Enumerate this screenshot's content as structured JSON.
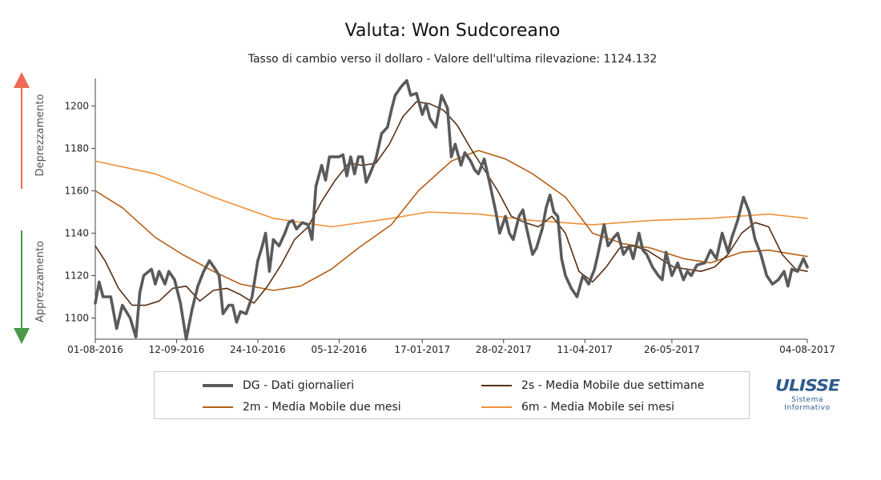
{
  "title": "Valuta: Won Sudcoreano",
  "subtitle": "Tasso di cambio verso il dollaro - Valore dell'ultima rilevazione: 1124.132",
  "side_labels": {
    "up": "Deprezzamento",
    "down": "Apprezzamento"
  },
  "colors": {
    "up_arrow": "#ef6a55",
    "down_arrow": "#4a9a4a"
  },
  "legend": [
    {
      "key": "DG",
      "label": "DG - Dati giornalieri",
      "color": "#5a5a5a"
    },
    {
      "key": "2s",
      "label": "2s - Media Mobile due settimane",
      "color": "#5a2e12"
    },
    {
      "key": "2m",
      "label": "2m - Media Mobile due mesi",
      "color": "#b45f16"
    },
    {
      "key": "6m",
      "label": "6m - Media Mobile sei mesi",
      "color": "#f0913a"
    }
  ],
  "logo": {
    "word": "ULISSE",
    "line1": "Sistema",
    "line2": "Informativo"
  },
  "chart_data": {
    "type": "line",
    "x_ticks": [
      "01-08-2016",
      "12-09-2016",
      "24-10-2016",
      "05-12-2016",
      "17-01-2017",
      "28-02-2017",
      "11-04-2017",
      "26-05-2017",
      "04-08-2017"
    ],
    "y_ticks": [
      1100,
      1120,
      1140,
      1160,
      1180,
      1200
    ],
    "ylim": [
      1090,
      1213
    ],
    "x_domain": [
      "2016-08-01",
      "2017-08-04"
    ],
    "grid": false,
    "series": [
      {
        "name": "DG",
        "points": [
          [
            "2016-08-01",
            1107
          ],
          [
            "2016-08-03",
            1117
          ],
          [
            "2016-08-05",
            1110
          ],
          [
            "2016-08-09",
            1110
          ],
          [
            "2016-08-12",
            1095
          ],
          [
            "2016-08-15",
            1106
          ],
          [
            "2016-08-19",
            1100
          ],
          [
            "2016-08-22",
            1091
          ],
          [
            "2016-08-24",
            1112
          ],
          [
            "2016-08-26",
            1120
          ],
          [
            "2016-08-30",
            1123
          ],
          [
            "2016-09-01",
            1116
          ],
          [
            "2016-09-03",
            1122
          ],
          [
            "2016-09-06",
            1116
          ],
          [
            "2016-09-08",
            1122
          ],
          [
            "2016-09-11",
            1118
          ],
          [
            "2016-09-14",
            1107
          ],
          [
            "2016-09-17",
            1090
          ],
          [
            "2016-09-20",
            1104
          ],
          [
            "2016-09-23",
            1115
          ],
          [
            "2016-09-26",
            1122
          ],
          [
            "2016-09-29",
            1127
          ],
          [
            "2016-10-02",
            1123
          ],
          [
            "2016-10-04",
            1120
          ],
          [
            "2016-10-06",
            1102
          ],
          [
            "2016-10-09",
            1106
          ],
          [
            "2016-10-11",
            1106
          ],
          [
            "2016-10-13",
            1098
          ],
          [
            "2016-10-15",
            1103
          ],
          [
            "2016-10-18",
            1102
          ],
          [
            "2016-10-21",
            1110
          ],
          [
            "2016-10-24",
            1127
          ],
          [
            "2016-10-26",
            1133
          ],
          [
            "2016-10-28",
            1140
          ],
          [
            "2016-10-30",
            1122
          ],
          [
            "2016-11-01",
            1137
          ],
          [
            "2016-11-04",
            1134
          ],
          [
            "2016-11-07",
            1140
          ],
          [
            "2016-11-09",
            1145
          ],
          [
            "2016-11-11",
            1146
          ],
          [
            "2016-11-13",
            1142
          ],
          [
            "2016-11-16",
            1145
          ],
          [
            "2016-11-19",
            1144
          ],
          [
            "2016-11-21",
            1137
          ],
          [
            "2016-11-23",
            1162
          ],
          [
            "2016-11-26",
            1172
          ],
          [
            "2016-11-28",
            1165
          ],
          [
            "2016-11-30",
            1176
          ],
          [
            "2016-12-02",
            1176
          ],
          [
            "2016-12-05",
            1176
          ],
          [
            "2016-12-07",
            1177
          ],
          [
            "2016-12-09",
            1167
          ],
          [
            "2016-12-11",
            1176
          ],
          [
            "2016-12-13",
            1168
          ],
          [
            "2016-12-15",
            1176
          ],
          [
            "2016-12-17",
            1176
          ],
          [
            "2016-12-19",
            1164
          ],
          [
            "2016-12-21",
            1168
          ],
          [
            "2016-12-24",
            1175
          ],
          [
            "2016-12-27",
            1187
          ],
          [
            "2016-12-30",
            1190
          ],
          [
            "2017-01-01",
            1198
          ],
          [
            "2017-01-03",
            1205
          ],
          [
            "2017-01-06",
            1209
          ],
          [
            "2017-01-09",
            1212
          ],
          [
            "2017-01-11",
            1205
          ],
          [
            "2017-01-14",
            1206
          ],
          [
            "2017-01-17",
            1196
          ],
          [
            "2017-01-19",
            1201
          ],
          [
            "2017-01-21",
            1194
          ],
          [
            "2017-01-24",
            1190
          ],
          [
            "2017-01-27",
            1205
          ],
          [
            "2017-01-30",
            1199
          ],
          [
            "2017-02-01",
            1176
          ],
          [
            "2017-02-03",
            1182
          ],
          [
            "2017-02-06",
            1172
          ],
          [
            "2017-02-08",
            1178
          ],
          [
            "2017-02-11",
            1174
          ],
          [
            "2017-02-13",
            1170
          ],
          [
            "2017-02-15",
            1168
          ],
          [
            "2017-02-18",
            1175
          ],
          [
            "2017-02-21",
            1163
          ],
          [
            "2017-02-24",
            1150
          ],
          [
            "2017-02-26",
            1140
          ],
          [
            "2017-03-01",
            1148
          ],
          [
            "2017-03-03",
            1140
          ],
          [
            "2017-03-05",
            1137
          ],
          [
            "2017-03-08",
            1148
          ],
          [
            "2017-03-10",
            1151
          ],
          [
            "2017-03-12",
            1142
          ],
          [
            "2017-03-15",
            1130
          ],
          [
            "2017-03-17",
            1133
          ],
          [
            "2017-03-20",
            1142
          ],
          [
            "2017-03-22",
            1152
          ],
          [
            "2017-03-24",
            1158
          ],
          [
            "2017-03-26",
            1150
          ],
          [
            "2017-03-28",
            1148
          ],
          [
            "2017-03-30",
            1128
          ],
          [
            "2017-04-01",
            1120
          ],
          [
            "2017-04-04",
            1114
          ],
          [
            "2017-04-07",
            1110
          ],
          [
            "2017-04-10",
            1120
          ],
          [
            "2017-04-13",
            1116
          ],
          [
            "2017-04-16",
            1123
          ],
          [
            "2017-04-18",
            1131
          ],
          [
            "2017-04-21",
            1144
          ],
          [
            "2017-04-23",
            1134
          ],
          [
            "2017-04-26",
            1138
          ],
          [
            "2017-04-28",
            1140
          ],
          [
            "2017-05-01",
            1130
          ],
          [
            "2017-05-04",
            1134
          ],
          [
            "2017-05-06",
            1128
          ],
          [
            "2017-05-09",
            1140
          ],
          [
            "2017-05-11",
            1132
          ],
          [
            "2017-05-13",
            1130
          ],
          [
            "2017-05-16",
            1124
          ],
          [
            "2017-05-19",
            1120
          ],
          [
            "2017-05-21",
            1118
          ],
          [
            "2017-05-23",
            1131
          ],
          [
            "2017-05-26",
            1120
          ],
          [
            "2017-05-29",
            1126
          ],
          [
            "2017-06-01",
            1118
          ],
          [
            "2017-06-03",
            1122
          ],
          [
            "2017-06-05",
            1120
          ],
          [
            "2017-06-08",
            1125
          ],
          [
            "2017-06-12",
            1126
          ],
          [
            "2017-06-15",
            1132
          ],
          [
            "2017-06-18",
            1128
          ],
          [
            "2017-06-21",
            1140
          ],
          [
            "2017-06-24",
            1131
          ],
          [
            "2017-06-26",
            1138
          ],
          [
            "2017-06-29",
            1146
          ],
          [
            "2017-07-02",
            1157
          ],
          [
            "2017-07-05",
            1150
          ],
          [
            "2017-07-08",
            1137
          ],
          [
            "2017-07-11",
            1130
          ],
          [
            "2017-07-14",
            1120
          ],
          [
            "2017-07-17",
            1116
          ],
          [
            "2017-07-20",
            1118
          ],
          [
            "2017-07-23",
            1122
          ],
          [
            "2017-07-25",
            1115
          ],
          [
            "2017-07-27",
            1123
          ],
          [
            "2017-07-30",
            1122
          ],
          [
            "2017-08-02",
            1128
          ],
          [
            "2017-08-04",
            1124
          ]
        ]
      },
      {
        "name": "2s",
        "points": [
          [
            "2016-08-01",
            1134
          ],
          [
            "2016-08-06",
            1127
          ],
          [
            "2016-08-13",
            1114
          ],
          [
            "2016-08-20",
            1106
          ],
          [
            "2016-08-27",
            1106
          ],
          [
            "2016-09-03",
            1108
          ],
          [
            "2016-09-10",
            1114
          ],
          [
            "2016-09-17",
            1115
          ],
          [
            "2016-09-24",
            1108
          ],
          [
            "2016-10-01",
            1113
          ],
          [
            "2016-10-08",
            1114
          ],
          [
            "2016-10-15",
            1111
          ],
          [
            "2016-10-22",
            1107
          ],
          [
            "2016-10-29",
            1115
          ],
          [
            "2016-11-05",
            1125
          ],
          [
            "2016-11-12",
            1137
          ],
          [
            "2016-11-19",
            1143
          ],
          [
            "2016-11-26",
            1155
          ],
          [
            "2016-12-03",
            1165
          ],
          [
            "2016-12-10",
            1173
          ],
          [
            "2016-12-17",
            1172
          ],
          [
            "2016-12-24",
            1173
          ],
          [
            "2016-12-31",
            1182
          ],
          [
            "2017-01-07",
            1195
          ],
          [
            "2017-01-14",
            1202
          ],
          [
            "2017-01-21",
            1201
          ],
          [
            "2017-01-28",
            1198
          ],
          [
            "2017-02-04",
            1191
          ],
          [
            "2017-02-11",
            1180
          ],
          [
            "2017-02-18",
            1170
          ],
          [
            "2017-02-25",
            1160
          ],
          [
            "2017-03-04",
            1148
          ],
          [
            "2017-03-11",
            1145
          ],
          [
            "2017-03-18",
            1143
          ],
          [
            "2017-03-25",
            1148
          ],
          [
            "2017-04-01",
            1140
          ],
          [
            "2017-04-08",
            1122
          ],
          [
            "2017-04-15",
            1117
          ],
          [
            "2017-04-22",
            1124
          ],
          [
            "2017-04-29",
            1133
          ],
          [
            "2017-05-06",
            1134
          ],
          [
            "2017-05-13",
            1132
          ],
          [
            "2017-05-20",
            1128
          ],
          [
            "2017-05-27",
            1124
          ],
          [
            "2017-06-03",
            1123
          ],
          [
            "2017-06-10",
            1122
          ],
          [
            "2017-06-17",
            1124
          ],
          [
            "2017-06-24",
            1130
          ],
          [
            "2017-07-01",
            1140
          ],
          [
            "2017-07-08",
            1145
          ],
          [
            "2017-07-15",
            1143
          ],
          [
            "2017-07-22",
            1130
          ],
          [
            "2017-07-29",
            1123
          ],
          [
            "2017-08-04",
            1122
          ]
        ]
      },
      {
        "name": "2m",
        "points": [
          [
            "2016-08-01",
            1160
          ],
          [
            "2016-08-15",
            1152
          ],
          [
            "2016-09-01",
            1138
          ],
          [
            "2016-09-15",
            1130
          ],
          [
            "2016-10-01",
            1122
          ],
          [
            "2016-10-15",
            1116
          ],
          [
            "2016-11-01",
            1113
          ],
          [
            "2016-11-15",
            1115
          ],
          [
            "2016-12-01",
            1123
          ],
          [
            "2016-12-15",
            1133
          ],
          [
            "2017-01-01",
            1144
          ],
          [
            "2017-01-15",
            1160
          ],
          [
            "2017-02-01",
            1174
          ],
          [
            "2017-02-15",
            1179
          ],
          [
            "2017-03-01",
            1175
          ],
          [
            "2017-03-15",
            1168
          ],
          [
            "2017-04-01",
            1157
          ],
          [
            "2017-04-15",
            1140
          ],
          [
            "2017-05-01",
            1135
          ],
          [
            "2017-05-15",
            1133
          ],
          [
            "2017-06-01",
            1128
          ],
          [
            "2017-06-15",
            1126
          ],
          [
            "2017-07-01",
            1131
          ],
          [
            "2017-07-15",
            1132
          ],
          [
            "2017-08-04",
            1129
          ]
        ]
      },
      {
        "name": "6m",
        "points": [
          [
            "2016-08-01",
            1174
          ],
          [
            "2016-09-01",
            1168
          ],
          [
            "2016-10-01",
            1157
          ],
          [
            "2016-11-01",
            1147
          ],
          [
            "2016-12-01",
            1143
          ],
          [
            "2017-01-01",
            1147
          ],
          [
            "2017-01-20",
            1150
          ],
          [
            "2017-02-15",
            1149
          ],
          [
            "2017-03-15",
            1146
          ],
          [
            "2017-04-15",
            1144
          ],
          [
            "2017-05-15",
            1146
          ],
          [
            "2017-06-15",
            1147
          ],
          [
            "2017-07-15",
            1149
          ],
          [
            "2017-08-04",
            1147
          ]
        ]
      }
    ]
  }
}
